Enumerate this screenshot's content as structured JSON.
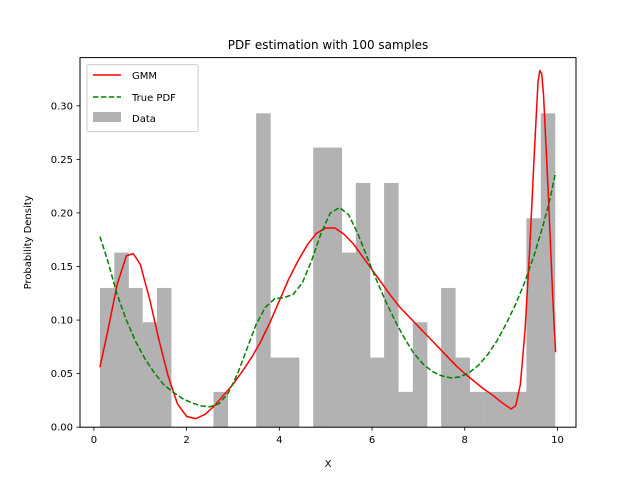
{
  "chart_data": {
    "type": "line",
    "title": "PDF estimation with 100 samples",
    "xlabel": "X",
    "ylabel": "Probability Density",
    "xlim": [
      -0.3,
      10.4
    ],
    "ylim": [
      0,
      0.345
    ],
    "xticks": [
      0,
      2,
      4,
      6,
      8,
      10
    ],
    "xtick_labels": [
      "0",
      "2",
      "4",
      "6",
      "8",
      "10"
    ],
    "yticks": [
      0,
      0.05,
      0.1,
      0.15,
      0.2,
      0.25,
      0.3
    ],
    "ytick_labels": [
      "0.00",
      "0.05",
      "0.10",
      "0.15",
      "0.20",
      "0.25",
      "0.30"
    ],
    "grid": false,
    "legend_position": "top-left",
    "legend": [
      "GMM",
      "True PDF",
      "Data"
    ],
    "histogram": {
      "name": "Data",
      "color": "#b2b2b2",
      "bin_width": 0.3066,
      "bins": [
        {
          "x0": 0.13,
          "value": 0.13
        },
        {
          "x0": 0.44,
          "value": 0.163
        },
        {
          "x0": 0.74,
          "value": 0.13
        },
        {
          "x0": 1.05,
          "value": 0.098
        },
        {
          "x0": 1.36,
          "value": 0.13
        },
        {
          "x0": 1.66,
          "value": 0
        },
        {
          "x0": 1.97,
          "value": 0
        },
        {
          "x0": 2.28,
          "value": 0
        },
        {
          "x0": 2.58,
          "value": 0.033
        },
        {
          "x0": 2.89,
          "value": 0
        },
        {
          "x0": 3.2,
          "value": 0
        },
        {
          "x0": 3.5,
          "value": 0.293
        },
        {
          "x0": 3.81,
          "value": 0.065
        },
        {
          "x0": 4.12,
          "value": 0.065
        },
        {
          "x0": 4.42,
          "value": 0
        },
        {
          "x0": 4.73,
          "value": 0.261
        },
        {
          "x0": 5.04,
          "value": 0.261
        },
        {
          "x0": 5.34,
          "value": 0.163
        },
        {
          "x0": 5.65,
          "value": 0.228
        },
        {
          "x0": 5.96,
          "value": 0.065
        },
        {
          "x0": 6.26,
          "value": 0.228
        },
        {
          "x0": 6.57,
          "value": 0.033
        },
        {
          "x0": 6.88,
          "value": 0.098
        },
        {
          "x0": 7.18,
          "value": 0
        },
        {
          "x0": 7.49,
          "value": 0.13
        },
        {
          "x0": 7.8,
          "value": 0.065
        },
        {
          "x0": 8.1,
          "value": 0.033
        },
        {
          "x0": 8.41,
          "value": 0.033
        },
        {
          "x0": 8.72,
          "value": 0.033
        },
        {
          "x0": 9.02,
          "value": 0.033
        },
        {
          "x0": 9.33,
          "value": 0.195
        },
        {
          "x0": 9.64,
          "value": 0.293
        }
      ]
    },
    "series": [
      {
        "name": "GMM",
        "color": "#ff0000",
        "style": "solid",
        "points": [
          [
            0.13,
            0.056
          ],
          [
            0.3,
            0.09
          ],
          [
            0.5,
            0.133
          ],
          [
            0.7,
            0.16
          ],
          [
            0.85,
            0.162
          ],
          [
            1.0,
            0.152
          ],
          [
            1.2,
            0.12
          ],
          [
            1.4,
            0.082
          ],
          [
            1.6,
            0.048
          ],
          [
            1.8,
            0.022
          ],
          [
            2.0,
            0.01
          ],
          [
            2.2,
            0.008
          ],
          [
            2.4,
            0.012
          ],
          [
            2.6,
            0.02
          ],
          [
            2.8,
            0.03
          ],
          [
            3.0,
            0.04
          ],
          [
            3.2,
            0.052
          ],
          [
            3.4,
            0.065
          ],
          [
            3.6,
            0.08
          ],
          [
            3.8,
            0.098
          ],
          [
            4.0,
            0.118
          ],
          [
            4.2,
            0.138
          ],
          [
            4.4,
            0.155
          ],
          [
            4.6,
            0.17
          ],
          [
            4.8,
            0.181
          ],
          [
            5.0,
            0.186
          ],
          [
            5.2,
            0.186
          ],
          [
            5.4,
            0.18
          ],
          [
            5.6,
            0.171
          ],
          [
            5.8,
            0.159
          ],
          [
            6.0,
            0.147
          ],
          [
            6.2,
            0.135
          ],
          [
            6.4,
            0.123
          ],
          [
            6.6,
            0.112
          ],
          [
            6.8,
            0.103
          ],
          [
            7.0,
            0.094
          ],
          [
            7.2,
            0.085
          ],
          [
            7.4,
            0.076
          ],
          [
            7.6,
            0.067
          ],
          [
            7.8,
            0.058
          ],
          [
            8.0,
            0.05
          ],
          [
            8.2,
            0.043
          ],
          [
            8.4,
            0.036
          ],
          [
            8.6,
            0.03
          ],
          [
            8.8,
            0.023
          ],
          [
            9.0,
            0.017
          ],
          [
            9.1,
            0.02
          ],
          [
            9.2,
            0.04
          ],
          [
            9.3,
            0.09
          ],
          [
            9.4,
            0.165
          ],
          [
            9.5,
            0.255
          ],
          [
            9.58,
            0.322
          ],
          [
            9.62,
            0.333
          ],
          [
            9.66,
            0.33
          ],
          [
            9.7,
            0.31
          ],
          [
            9.8,
            0.22
          ],
          [
            9.9,
            0.12
          ],
          [
            9.96,
            0.07
          ]
        ]
      },
      {
        "name": "True PDF",
        "color": "#008000",
        "style": "dashed",
        "points": [
          [
            0.13,
            0.178
          ],
          [
            0.3,
            0.155
          ],
          [
            0.5,
            0.124
          ],
          [
            0.7,
            0.1
          ],
          [
            0.9,
            0.08
          ],
          [
            1.1,
            0.064
          ],
          [
            1.3,
            0.051
          ],
          [
            1.5,
            0.04
          ],
          [
            1.7,
            0.033
          ],
          [
            1.9,
            0.027
          ],
          [
            2.1,
            0.023
          ],
          [
            2.3,
            0.02
          ],
          [
            2.5,
            0.019
          ],
          [
            2.7,
            0.022
          ],
          [
            2.9,
            0.032
          ],
          [
            3.1,
            0.05
          ],
          [
            3.3,
            0.073
          ],
          [
            3.5,
            0.096
          ],
          [
            3.7,
            0.112
          ],
          [
            3.9,
            0.12
          ],
          [
            4.1,
            0.121
          ],
          [
            4.3,
            0.124
          ],
          [
            4.5,
            0.135
          ],
          [
            4.7,
            0.156
          ],
          [
            4.9,
            0.181
          ],
          [
            5.1,
            0.2
          ],
          [
            5.3,
            0.205
          ],
          [
            5.5,
            0.198
          ],
          [
            5.7,
            0.18
          ],
          [
            5.9,
            0.158
          ],
          [
            6.1,
            0.137
          ],
          [
            6.3,
            0.117
          ],
          [
            6.5,
            0.099
          ],
          [
            6.7,
            0.083
          ],
          [
            6.9,
            0.069
          ],
          [
            7.1,
            0.059
          ],
          [
            7.3,
            0.052
          ],
          [
            7.5,
            0.048
          ],
          [
            7.7,
            0.046
          ],
          [
            7.9,
            0.047
          ],
          [
            8.1,
            0.051
          ],
          [
            8.3,
            0.058
          ],
          [
            8.5,
            0.068
          ],
          [
            8.7,
            0.081
          ],
          [
            8.9,
            0.097
          ],
          [
            9.1,
            0.115
          ],
          [
            9.3,
            0.136
          ],
          [
            9.5,
            0.161
          ],
          [
            9.7,
            0.19
          ],
          [
            9.85,
            0.215
          ],
          [
            9.96,
            0.238
          ]
        ]
      }
    ]
  }
}
